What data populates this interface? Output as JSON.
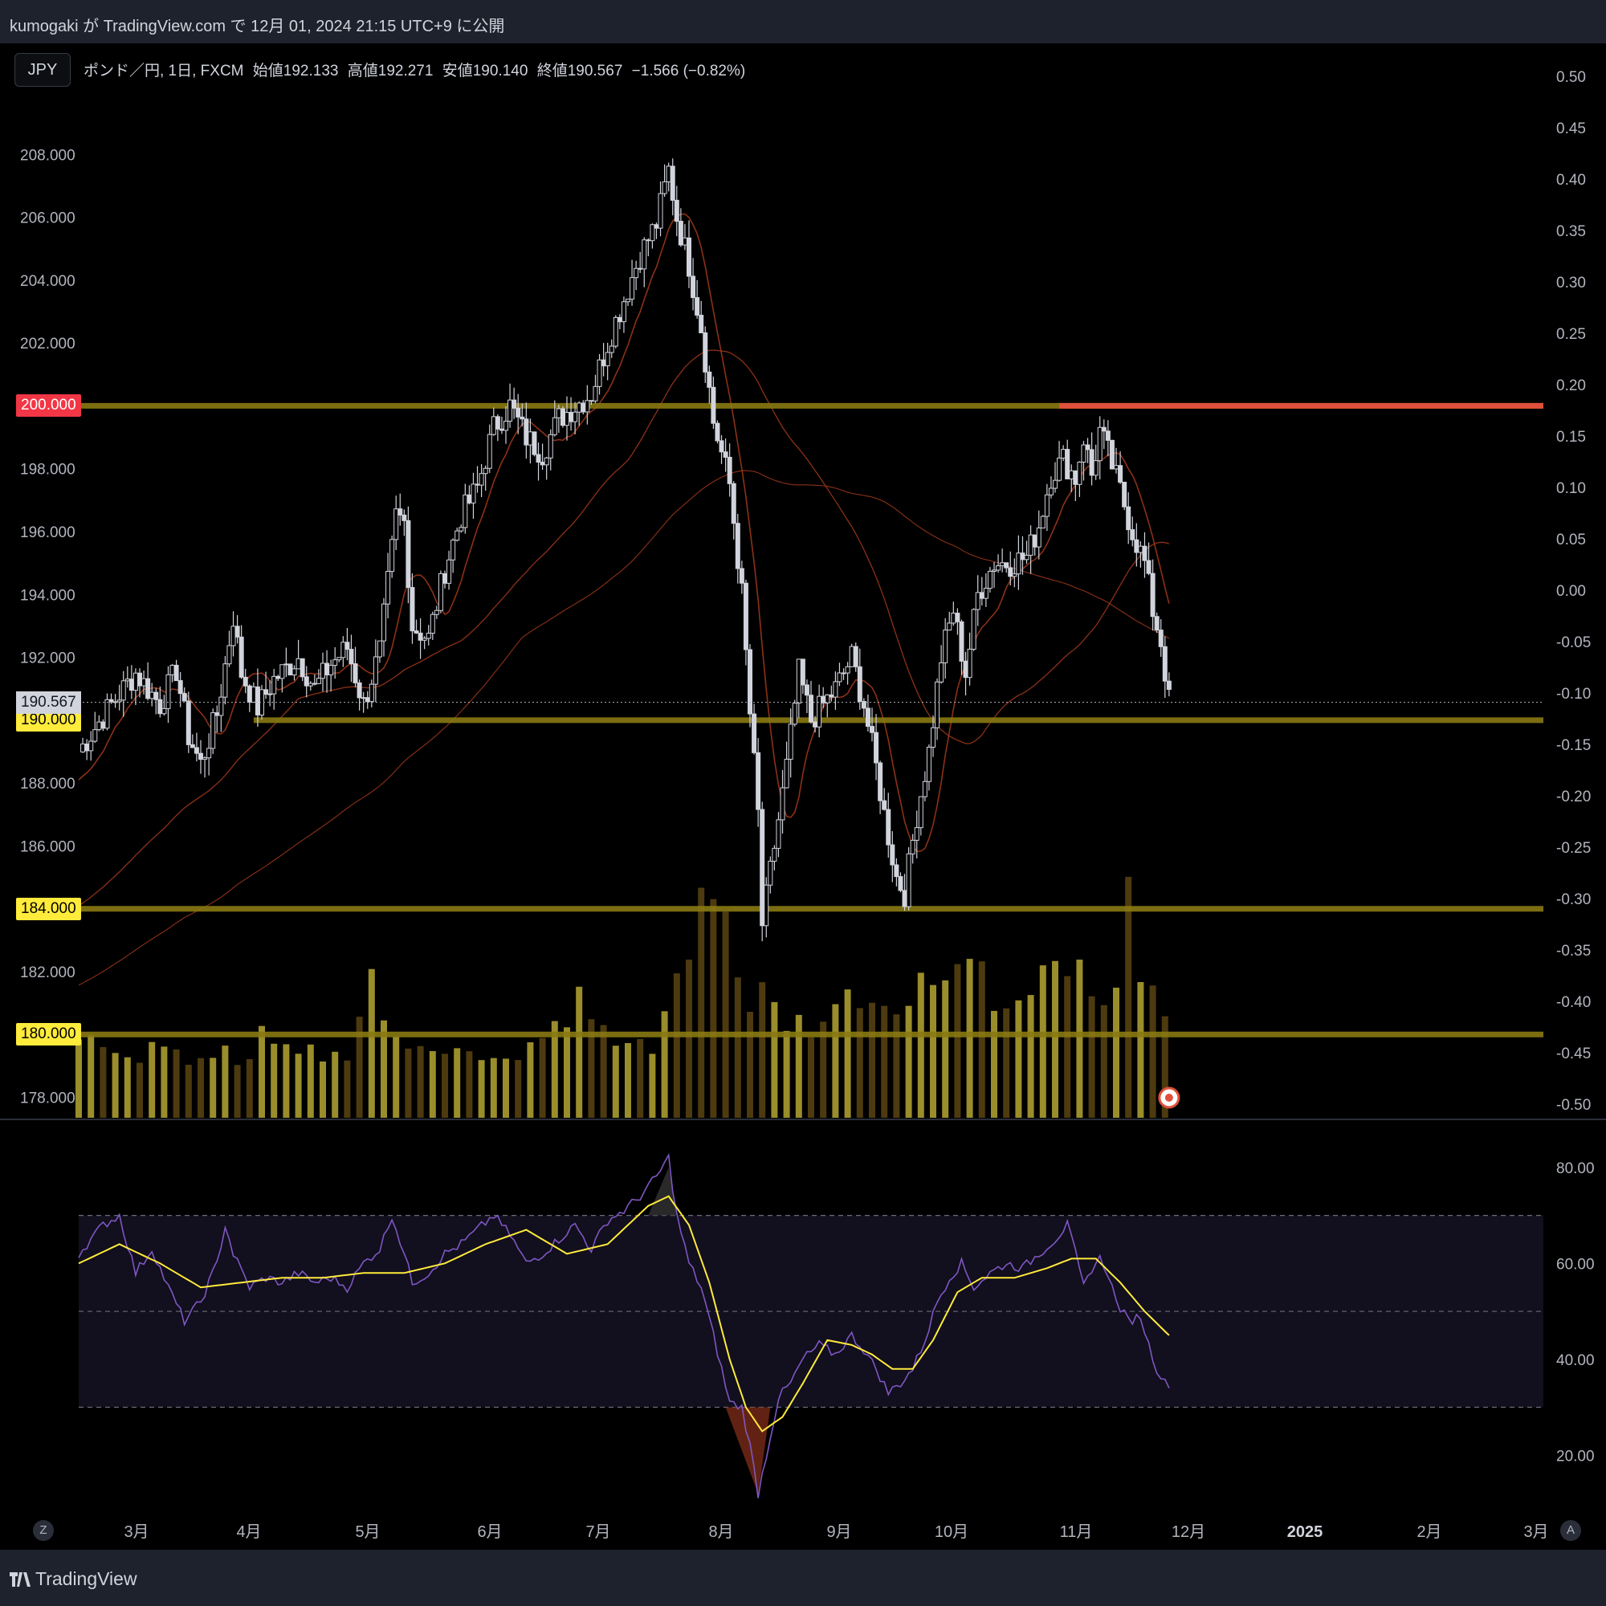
{
  "header": {
    "publish_line": "kumogaki が TradingView.com で 12月 01, 2024 21:15 UTC+9 に公開"
  },
  "symbol_button": "JPY",
  "legend": {
    "pair": "ポンド／円, 1日, FXCM",
    "open": "始値192.133",
    "high": "高値192.271",
    "low": "安値190.140",
    "close": "終値190.567",
    "change": "−1.566 (−0.82%)"
  },
  "last_price": "190.567",
  "levels": [
    {
      "price_label": "200.000",
      "value": 200,
      "tag_color": "#f23645"
    },
    {
      "price_label": "190.000",
      "value": 190,
      "tag_color": "#ffeb3b"
    },
    {
      "price_label": "184.000",
      "value": 184,
      "tag_color": "#ffeb3b"
    },
    {
      "price_label": "180.000",
      "value": 180,
      "tag_color": "#ffeb3b"
    }
  ],
  "colors": {
    "level_line": "#8a7a12",
    "resistance_line": "#e0503a",
    "ma_line": "#a53a1a",
    "candle": "#d1d4dc",
    "volume_up": "#b5a632",
    "volume_down": "#5a4412",
    "rsi_line": "#7e57c2",
    "rsi_ma": "#ffeb3b",
    "rsi_band": "#120f1e"
  },
  "brand": "TradingView",
  "buttons": {
    "z": "Z",
    "a": "A"
  },
  "chart_data": [
    {
      "type": "candlestick",
      "left_axis": {
        "ticks": [
          "208.000",
          "206.000",
          "204.000",
          "202.000",
          "198.000",
          "196.000",
          "194.000",
          "192.000",
          "188.000",
          "186.000",
          "182.000",
          "178.000"
        ],
        "range": [
          177.3,
          210.0
        ]
      },
      "right_axis": {
        "ticks": [
          "0.50",
          "0.45",
          "0.40",
          "0.35",
          "0.30",
          "0.25",
          "0.20",
          "0.15",
          "0.10",
          "0.05",
          "0.00",
          "-0.05",
          "-0.10",
          "-0.15",
          "-0.20",
          "-0.25",
          "-0.30",
          "-0.35",
          "-0.40",
          "-0.45",
          "-0.50"
        ]
      },
      "x_axis": {
        "ticks": [
          "3月",
          "4月",
          "5月",
          "6月",
          "7月",
          "8月",
          "9月",
          "10月",
          "11月",
          "12月",
          "2025",
          "2月",
          "3月"
        ]
      },
      "close_path": [
        [
          0,
          189.0
        ],
        [
          8,
          190.5
        ],
        [
          14,
          191.5
        ],
        [
          20,
          190.5
        ],
        [
          24,
          191.6
        ],
        [
          27,
          189.5
        ],
        [
          30,
          188.6
        ],
        [
          34,
          190.2
        ],
        [
          38,
          193.3
        ],
        [
          40,
          191.5
        ],
        [
          44,
          190.4
        ],
        [
          48,
          191.3
        ],
        [
          54,
          192.0
        ],
        [
          58,
          191.0
        ],
        [
          62,
          191.8
        ],
        [
          66,
          192.3
        ],
        [
          70,
          190.5
        ],
        [
          74,
          192.2
        ],
        [
          78,
          196.5
        ],
        [
          80,
          196.3
        ],
        [
          82,
          193.0
        ],
        [
          86,
          192.6
        ],
        [
          90,
          194.8
        ],
        [
          94,
          196.5
        ],
        [
          98,
          197.4
        ],
        [
          102,
          199.3
        ],
        [
          106,
          200.0
        ],
        [
          110,
          199.0
        ],
        [
          114,
          198.5
        ],
        [
          118,
          199.6
        ],
        [
          122,
          200.0
        ],
        [
          126,
          200.4
        ],
        [
          130,
          202.0
        ],
        [
          134,
          203.4
        ],
        [
          138,
          204.8
        ],
        [
          142,
          205.8
        ],
        [
          145,
          207.5
        ],
        [
          147,
          206.0
        ],
        [
          150,
          204.5
        ],
        [
          153,
          202.5
        ],
        [
          156,
          199.5
        ],
        [
          160,
          197.5
        ],
        [
          163,
          194.0
        ],
        [
          165,
          190.2
        ],
        [
          167,
          187.0
        ],
        [
          168,
          183.5
        ],
        [
          171,
          186.0
        ],
        [
          174,
          188.5
        ],
        [
          177,
          191.5
        ],
        [
          180,
          190.0
        ],
        [
          183,
          190.5
        ],
        [
          186,
          191.0
        ],
        [
          190,
          192.0
        ],
        [
          193,
          190.5
        ],
        [
          196,
          188.5
        ],
        [
          198,
          187.0
        ],
        [
          201,
          185.0
        ],
        [
          203,
          184.5
        ],
        [
          206,
          187.0
        ],
        [
          209,
          189.0
        ],
        [
          212,
          192.0
        ],
        [
          215,
          193.5
        ],
        [
          218,
          191.5
        ],
        [
          221,
          194.0
        ],
        [
          225,
          195.0
        ],
        [
          229,
          195.0
        ],
        [
          233,
          195.2
        ],
        [
          236,
          196.2
        ],
        [
          239,
          197.8
        ],
        [
          242,
          198.3
        ],
        [
          245,
          197.7
        ],
        [
          247,
          199.0
        ],
        [
          249,
          197.8
        ],
        [
          251,
          199.2
        ],
        [
          253,
          198.5
        ],
        [
          256,
          197.3
        ],
        [
          259,
          196.0
        ],
        [
          262,
          195.0
        ],
        [
          264,
          193.5
        ],
        [
          266,
          192.5
        ],
        [
          268,
          190.6
        ]
      ],
      "ma_short_visible": true,
      "ma_long_visible": true
    },
    {
      "type": "bar",
      "title": "volume",
      "values_relative": [
        0.32,
        0.28,
        0.3,
        0.25,
        0.27,
        0.3,
        0.26,
        0.28,
        0.24,
        0.27,
        0.25,
        0.3,
        0.26,
        0.35,
        0.29,
        0.31,
        0.27,
        0.3,
        0.25,
        0.33,
        0.28,
        0.45,
        0.55,
        0.38,
        0.3,
        0.27,
        0.29,
        0.32,
        0.26,
        0.3,
        0.27,
        0.28,
        0.3,
        0.26,
        0.34,
        0.29,
        0.37,
        0.55,
        0.5,
        0.4,
        0.35,
        0.32,
        0.36,
        0.3,
        0.45,
        0.6,
        0.75,
        0.95,
        0.88,
        0.7,
        0.55,
        0.58,
        0.5,
        0.45,
        0.42,
        0.4,
        0.48,
        0.52,
        0.56,
        0.44,
        0.42,
        0.5,
        0.58,
        0.55,
        0.48,
        0.52,
        0.6,
        0.66,
        0.58,
        0.55,
        0.5,
        0.48,
        0.62,
        0.7,
        0.65,
        0.58,
        0.5,
        0.55,
        0.52,
        1.0,
        0.7,
        0.62,
        0.5
      ],
      "spike_max_relative": 1.0
    },
    {
      "type": "line",
      "title": "RSI",
      "axis": {
        "ticks": [
          "80.00",
          "60.00",
          "40.00",
          "20.00"
        ],
        "range": [
          10,
          85
        ]
      },
      "bands": [
        30,
        50,
        70
      ],
      "rsi": [
        [
          0,
          62
        ],
        [
          6,
          68
        ],
        [
          10,
          70
        ],
        [
          14,
          58
        ],
        [
          18,
          63
        ],
        [
          22,
          55
        ],
        [
          26,
          48
        ],
        [
          30,
          52
        ],
        [
          34,
          60
        ],
        [
          36,
          68
        ],
        [
          38,
          62
        ],
        [
          42,
          55
        ],
        [
          46,
          57
        ],
        [
          50,
          56
        ],
        [
          54,
          58
        ],
        [
          58,
          56
        ],
        [
          62,
          57
        ],
        [
          66,
          55
        ],
        [
          70,
          60
        ],
        [
          74,
          63
        ],
        [
          77,
          70
        ],
        [
          80,
          62
        ],
        [
          82,
          56
        ],
        [
          86,
          58
        ],
        [
          90,
          62
        ],
        [
          94,
          64
        ],
        [
          98,
          67
        ],
        [
          102,
          70
        ],
        [
          106,
          66
        ],
        [
          110,
          60
        ],
        [
          114,
          62
        ],
        [
          118,
          65
        ],
        [
          122,
          68
        ],
        [
          126,
          63
        ],
        [
          130,
          69
        ],
        [
          134,
          71
        ],
        [
          138,
          74
        ],
        [
          142,
          78
        ],
        [
          145,
          82
        ],
        [
          147,
          70
        ],
        [
          150,
          60
        ],
        [
          153,
          55
        ],
        [
          156,
          45
        ],
        [
          160,
          31
        ],
        [
          163,
          30
        ],
        [
          165,
          22
        ],
        [
          167,
          12
        ],
        [
          169,
          20
        ],
        [
          172,
          32
        ],
        [
          175,
          35
        ],
        [
          178,
          40
        ],
        [
          182,
          43
        ],
        [
          186,
          41
        ],
        [
          190,
          45
        ],
        [
          193,
          42
        ],
        [
          196,
          38
        ],
        [
          199,
          33
        ],
        [
          202,
          35
        ],
        [
          205,
          38
        ],
        [
          208,
          44
        ],
        [
          211,
          52
        ],
        [
          214,
          57
        ],
        [
          217,
          60
        ],
        [
          220,
          55
        ],
        [
          224,
          58
        ],
        [
          228,
          60
        ],
        [
          232,
          59
        ],
        [
          236,
          62
        ],
        [
          240,
          65
        ],
        [
          243,
          68
        ],
        [
          245,
          62
        ],
        [
          247,
          55
        ],
        [
          249,
          59
        ],
        [
          251,
          61
        ],
        [
          253,
          58
        ],
        [
          255,
          52
        ],
        [
          258,
          48
        ],
        [
          261,
          49
        ],
        [
          263,
          43
        ],
        [
          265,
          38
        ],
        [
          267,
          35
        ]
      ],
      "rsi_ma": [
        [
          0,
          60
        ],
        [
          10,
          64
        ],
        [
          20,
          60
        ],
        [
          30,
          55
        ],
        [
          40,
          56
        ],
        [
          50,
          57
        ],
        [
          60,
          57
        ],
        [
          70,
          58
        ],
        [
          80,
          58
        ],
        [
          90,
          60
        ],
        [
          100,
          64
        ],
        [
          110,
          67
        ],
        [
          120,
          62
        ],
        [
          130,
          64
        ],
        [
          140,
          72
        ],
        [
          145,
          74
        ],
        [
          150,
          68
        ],
        [
          155,
          56
        ],
        [
          160,
          40
        ],
        [
          164,
          30
        ],
        [
          168,
          25
        ],
        [
          173,
          28
        ],
        [
          178,
          35
        ],
        [
          184,
          44
        ],
        [
          190,
          43
        ],
        [
          195,
          41
        ],
        [
          200,
          38
        ],
        [
          205,
          38
        ],
        [
          210,
          44
        ],
        [
          216,
          54
        ],
        [
          222,
          57
        ],
        [
          230,
          57
        ],
        [
          238,
          59
        ],
        [
          244,
          61
        ],
        [
          250,
          61
        ],
        [
          256,
          56
        ],
        [
          262,
          50
        ],
        [
          268,
          45
        ]
      ]
    }
  ]
}
